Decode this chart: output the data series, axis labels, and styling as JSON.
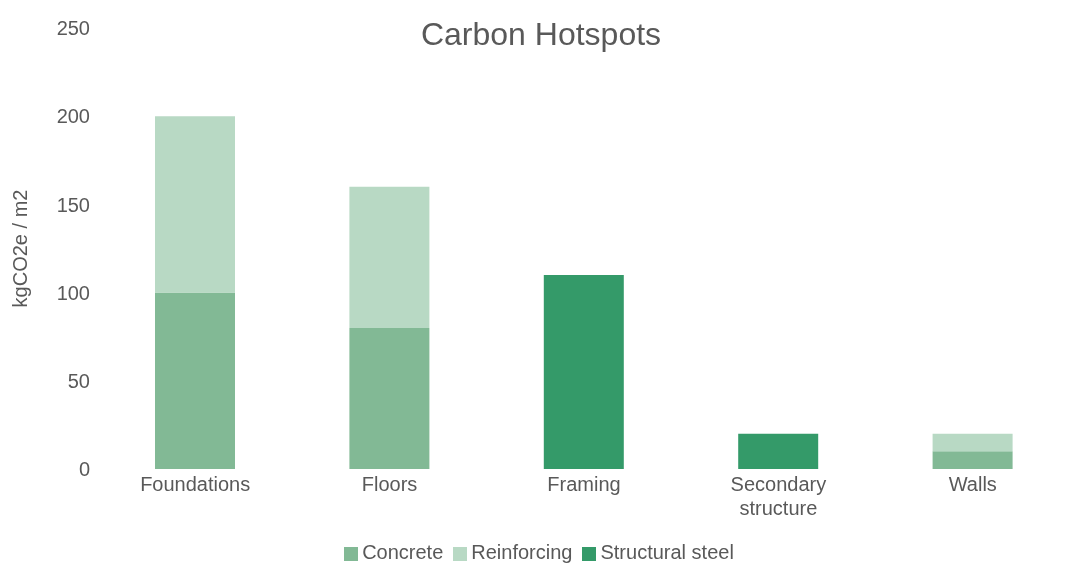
{
  "chart_data": {
    "type": "bar",
    "title": "Carbon Hotspots",
    "ylabel": "kgCO2e / m2",
    "categories": [
      "Foundations",
      "Floors",
      "Framing",
      "Secondary structure",
      "Walls"
    ],
    "series": [
      {
        "name": "Concrete",
        "color": "#82b995",
        "values": [
          100,
          80,
          null,
          null,
          10
        ]
      },
      {
        "name": "Reinforcing",
        "color": "#b8d9c4",
        "values": [
          100,
          80,
          null,
          null,
          10
        ]
      },
      {
        "name": "Structural steel",
        "color": "#349a69",
        "values": [
          null,
          null,
          110,
          20,
          null
        ]
      }
    ],
    "stacked": true,
    "ylim": [
      0,
      250
    ],
    "yticks": [
      0,
      50,
      100,
      150,
      200,
      250
    ],
    "grid": false,
    "legend": "bottom"
  }
}
